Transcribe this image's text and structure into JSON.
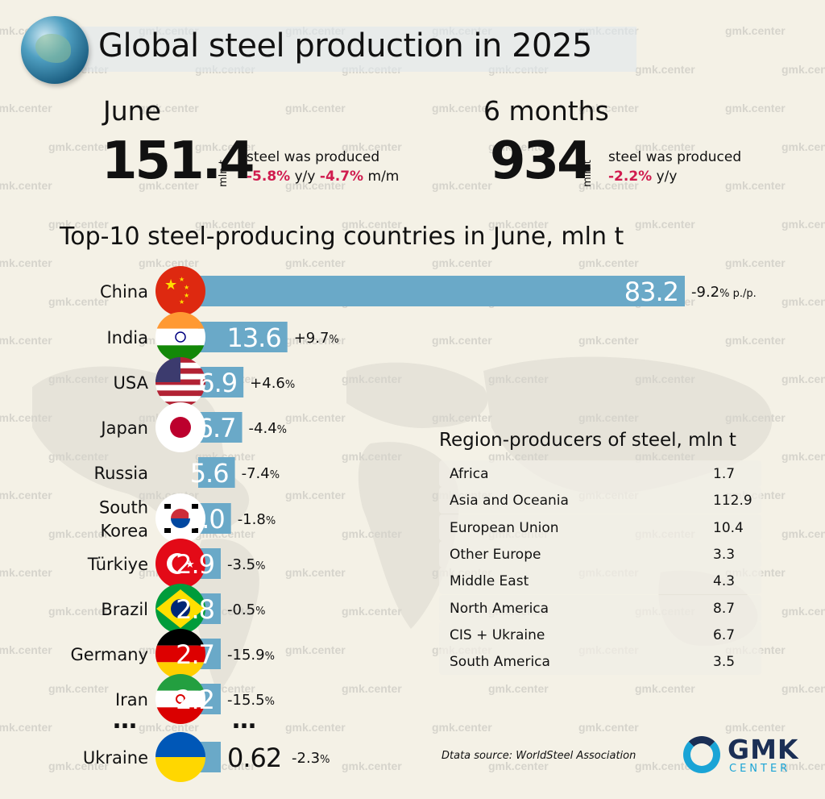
{
  "header": {
    "title": "Global steel production in 2025"
  },
  "watermark_text": "gmk.center",
  "june": {
    "label": "June",
    "value": "151.4",
    "unit": "mln t",
    "text": "steel was produced",
    "yy": "-5.8%",
    "yy_unit": "y/y",
    "mm": "-4.7%",
    "mm_unit": "m/m"
  },
  "half_year": {
    "label": "6 months",
    "value": "934",
    "unit": "mln t",
    "text": "steel was produced",
    "yy": "-2.2%",
    "yy_unit": "y/y"
  },
  "section_title": "Top-10 steel-producing countries in June, mln t",
  "chart_data": {
    "type": "bar",
    "orientation": "horizontal",
    "title": "Top-10 steel-producing countries in June, mln t",
    "categories": [
      "China",
      "India",
      "USA",
      "Japan",
      "Russia",
      "South Korea",
      "Türkiye",
      "Brazil",
      "Germany",
      "Iran",
      "Ukraine"
    ],
    "category_lines": [
      [
        "China"
      ],
      [
        "India"
      ],
      [
        "USA"
      ],
      [
        "Japan"
      ],
      [
        "Russia"
      ],
      [
        "South",
        "Korea"
      ],
      [
        "Türkiye"
      ],
      [
        "Brazil"
      ],
      [
        "Germany"
      ],
      [
        "Iran"
      ],
      [
        "Ukraine"
      ]
    ],
    "values": [
      83.2,
      13.6,
      6.9,
      6.7,
      5.6,
      5.0,
      2.9,
      2.8,
      2.7,
      2.2,
      0.62
    ],
    "value_labels": [
      "83.2",
      "13.6",
      "6.9",
      "6.7",
      "5.6",
      "5.0",
      "2.9",
      "2.8",
      "2.7",
      "2.2",
      "0.62"
    ],
    "changes": [
      "-9.2",
      "+9.7",
      "+4.6",
      "-4.4",
      "-7.4",
      "-1.8",
      "-3.5",
      "-0.5",
      "-15.9",
      "-15.5",
      "-2.3"
    ],
    "change_units": [
      "% p./p.",
      "%",
      "%",
      "%",
      "%",
      "%",
      "%",
      "%",
      "%",
      "%",
      "%"
    ],
    "ellipsis": "…",
    "bar_color": "#6aa9c8",
    "flags": [
      "china-flag",
      "india-flag",
      "usa-flag",
      "japan-flag",
      null,
      "south-korea-flag",
      "turkiye-flag",
      "brazil-flag",
      "germany-flag",
      "iran-flag",
      "ukraine-flag"
    ]
  },
  "regions": {
    "title": "Region-producers of steel, mln t",
    "rows": [
      {
        "name": "Africa",
        "value": "1.7"
      },
      {
        "name": "Asia and Oceania",
        "value": "112.9"
      },
      {
        "name": "European Union",
        "value": "10.4"
      },
      {
        "name": "Other Europe",
        "value": "3.3"
      },
      {
        "name": "Middle East",
        "value": "4.3"
      },
      {
        "name": "North America",
        "value": "8.7"
      },
      {
        "name": "CIS + Ukraine",
        "value": "6.7"
      },
      {
        "name": "South America",
        "value": "3.5"
      }
    ]
  },
  "source": "Dtata source: WorldSteel Association",
  "logo": {
    "name": "GMK",
    "sub": "CENTER"
  }
}
